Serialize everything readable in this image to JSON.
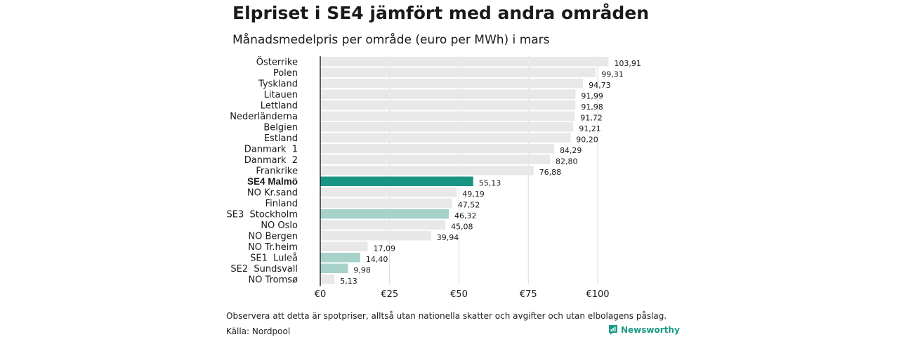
{
  "header": {
    "title": "Elpriset i SE4 jämfört med andra områden",
    "subtitle": "Månadsmedelpris per område (euro per MWh) i mars"
  },
  "footer": {
    "note": "Observera att detta är spotpriser, alltså utan nationella skatter och avgifter och utan elbolagens påslag.",
    "source": "Källa: Nordpool",
    "brand": "Newsworthy"
  },
  "colors": {
    "default_bar": "#e8e8e8",
    "highlight": "#1a9483",
    "secondary": "#a6d2c9",
    "brand": "#1a9a86"
  },
  "chart_data": {
    "type": "bar",
    "orientation": "horizontal",
    "title": "Elpriset i SE4 jämfört med andra områden",
    "subtitle": "Månadsmedelpris per område (euro per MWh) i mars",
    "categories": [
      "Österrike",
      "Polen",
      "Tyskland",
      "Litauen",
      "Lettland",
      "Nederländerna",
      "Belgien",
      "Estland",
      "Danmark  1",
      "Danmark  2",
      "Frankrike",
      "SE4 Malmö",
      "NO Kr.sand",
      "Finland",
      "SE3  Stockholm",
      "NO Oslo",
      "NO Bergen",
      "NO Tr.heim",
      "SE1  Luleå",
      "SE2  Sundsvall",
      "NO Tromsø"
    ],
    "values": [
      103.91,
      99.31,
      94.73,
      91.99,
      91.98,
      91.72,
      91.21,
      90.2,
      84.29,
      82.8,
      76.88,
      55.13,
      49.19,
      47.52,
      46.32,
      45.08,
      39.94,
      17.09,
      14.4,
      9.98,
      5.13
    ],
    "value_labels": [
      "103,91",
      "99,31",
      "94,73",
      "91,99",
      "91,98",
      "91,72",
      "91,21",
      "90,20",
      "84,29",
      "82,80",
      "76,88",
      "55,13",
      "49,19",
      "47,52",
      "46,32",
      "45,08",
      "39,94",
      "17,09",
      "14,40",
      "9,98",
      "5,13"
    ],
    "highlight": [
      "default",
      "default",
      "default",
      "default",
      "default",
      "default",
      "default",
      "default",
      "default",
      "default",
      "default",
      "highlight",
      "default",
      "default",
      "secondary",
      "default",
      "default",
      "default",
      "secondary",
      "secondary",
      "default"
    ],
    "xticks": [
      0,
      25,
      50,
      75,
      100
    ],
    "xtick_labels": [
      "€0",
      "€25",
      "€50",
      "€75",
      "€100"
    ],
    "xlim": [
      0,
      105
    ],
    "grid": true,
    "xlabel": "",
    "ylabel": ""
  }
}
